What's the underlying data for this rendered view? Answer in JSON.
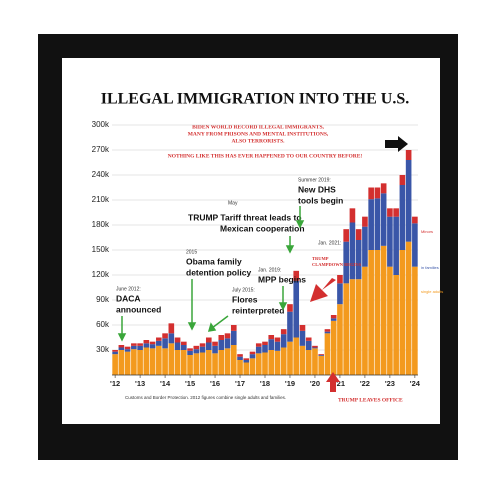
{
  "chart_data": {
    "type": "stacked-bar",
    "title": "ILLEGAL IMMIGRATION INTO THE U.S.",
    "subtitle": [
      "BIDEN WORLD RECORD ILLEGAL IMMIGRANTS,",
      "MANY FROM PRISONS AND MENTAL INSTITUTIONS,",
      "ALSO TERRORISTS.",
      "NOTHING LIKE THIS HAS EVER HAPPENED TO OUR COUNTRY BEFORE!"
    ],
    "categories": [
      "'12",
      null,
      null,
      null,
      "'13",
      null,
      null,
      null,
      "'14",
      null,
      null,
      null,
      "'15",
      null,
      null,
      null,
      "'16",
      null,
      null,
      null,
      "'17",
      null,
      null,
      null,
      "'18",
      null,
      null,
      null,
      "'19",
      null,
      null,
      null,
      "'20",
      null,
      null,
      null,
      "'21",
      null,
      null,
      null,
      "'22",
      null,
      null,
      null,
      "'23",
      null,
      null,
      null,
      "'24"
    ],
    "series": [
      {
        "name": "single adults",
        "color": "#f39a1e",
        "values": [
          25000,
          30000,
          28000,
          31000,
          30000,
          33000,
          32000,
          35000,
          32000,
          38000,
          30000,
          30000,
          24000,
          26000,
          27000,
          30000,
          26000,
          30000,
          32000,
          36000,
          18000,
          15000,
          20000,
          26000,
          27000,
          30000,
          29000,
          33000,
          40000,
          45000,
          35000,
          30000,
          32000,
          23000,
          50000,
          65000,
          85000,
          110000,
          115000,
          115000,
          130000,
          150000,
          150000,
          155000,
          130000,
          120000,
          150000,
          160000,
          130000
        ]
      },
      {
        "name": "in families",
        "color": "#3a56a8",
        "values": [
          3000,
          3000,
          3000,
          4000,
          5000,
          5000,
          5000,
          6000,
          12000,
          12000,
          9000,
          6000,
          5000,
          5000,
          7000,
          9000,
          9000,
          12000,
          12000,
          17000,
          4000,
          3000,
          5000,
          8000,
          9000,
          13000,
          11000,
          16000,
          36000,
          68000,
          18000,
          11000,
          1000,
          1000,
          2000,
          3000,
          25000,
          50000,
          68000,
          47000,
          48000,
          61000,
          62000,
          63000,
          60000,
          70000,
          78000,
          98000,
          52000
        ]
      },
      {
        "name": "Minors",
        "color": "#d32f2f",
        "values": [
          2000,
          3000,
          3000,
          3000,
          3000,
          4000,
          3000,
          4000,
          6000,
          12000,
          6000,
          4000,
          3000,
          4000,
          4000,
          6000,
          5000,
          6000,
          6000,
          7000,
          3000,
          2000,
          3000,
          4000,
          4000,
          5000,
          5000,
          6000,
          9000,
          12000,
          7000,
          4000,
          2000,
          1000,
          3000,
          4000,
          10000,
          15000,
          17000,
          13000,
          12000,
          14000,
          13000,
          12000,
          10000,
          10000,
          12000,
          12000,
          8000
        ]
      }
    ],
    "ylim": [
      0,
      300000
    ],
    "yticks": [
      {
        "value": 30000,
        "label": "30k"
      },
      {
        "value": 60000,
        "label": "60k"
      },
      {
        "value": 90000,
        "label": "90k"
      },
      {
        "value": 120000,
        "label": "120k"
      },
      {
        "value": 150000,
        "label": "150k"
      },
      {
        "value": 180000,
        "label": "180k"
      },
      {
        "value": 210000,
        "label": "210k"
      },
      {
        "value": 240000,
        "label": "240k"
      },
      {
        "value": 270000,
        "label": "270k"
      },
      {
        "value": 300000,
        "label": "300k"
      }
    ],
    "grid": true,
    "annotations": [
      "June 2012:",
      "DACA",
      "announced",
      "2015",
      "Obama family",
      "detention policy",
      "July 2015:",
      "Flores",
      "reinterpreted",
      "May",
      "TRUMP Tariff threat leads to",
      "Mexican cooperation",
      "Summer 2019:",
      "New DHS",
      "tools begin",
      "Jan. 2019:",
      "MPP begins",
      "Jan. 2021:",
      "TRUMP",
      "CLAMPDOWN BEGINS",
      "TRUMP LEAVES OFFICE"
    ],
    "source": "Customs and Border Protection. 2012 figures combine single adults and families."
  }
}
